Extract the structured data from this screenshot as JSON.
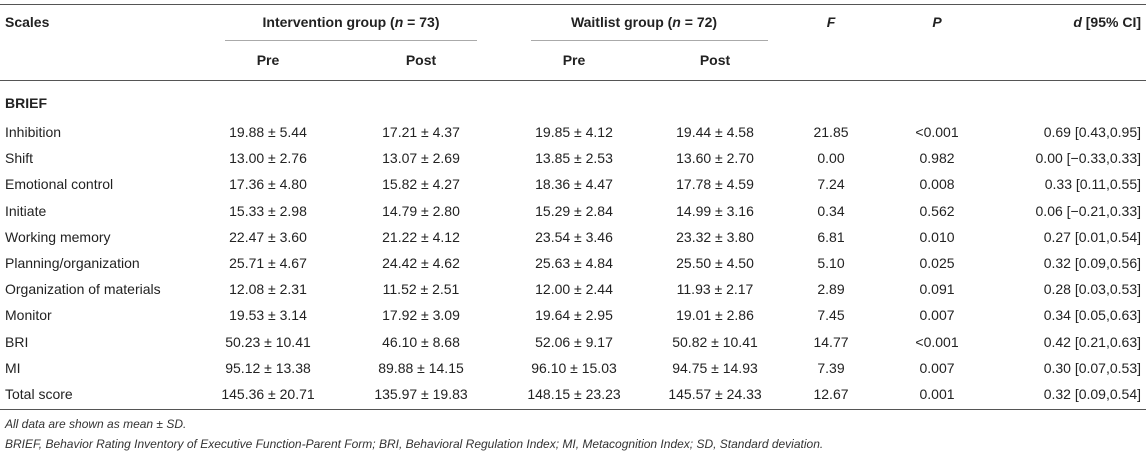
{
  "header": {
    "scales": "Scales",
    "intervention": "Intervention group (",
    "intervention_n": "n",
    "intervention_val": " = 73)",
    "waitlist": "Waitlist group (",
    "waitlist_n": "n",
    "waitlist_val": " = 72)",
    "f": "F",
    "p": "P",
    "d": "d",
    "d_rest": " [95% CI]",
    "pre": "Pre",
    "post": "Post"
  },
  "section": "BRIEF",
  "rows": [
    {
      "scale": "Inhibition",
      "int_pre": "19.88 ± 5.44",
      "int_post": "17.21 ± 4.37",
      "wl_pre": "19.85 ± 4.12",
      "wl_post": "19.44 ± 4.58",
      "f": "21.85",
      "p": "<0.001",
      "d": "0.69 [0.43,0.95]"
    },
    {
      "scale": "Shift",
      "int_pre": "13.00 ± 2.76",
      "int_post": "13.07 ± 2.69",
      "wl_pre": "13.85 ± 2.53",
      "wl_post": "13.60 ± 2.70",
      "f": "0.00",
      "p": "0.982",
      "d": "0.00 [−0.33,0.33]"
    },
    {
      "scale": "Emotional control",
      "int_pre": "17.36 ± 4.80",
      "int_post": "15.82 ± 4.27",
      "wl_pre": "18.36 ± 4.47",
      "wl_post": "17.78 ± 4.59",
      "f": "7.24",
      "p": "0.008",
      "d": "0.33 [0.11,0.55]"
    },
    {
      "scale": "Initiate",
      "int_pre": "15.33 ± 2.98",
      "int_post": "14.79 ± 2.80",
      "wl_pre": "15.29 ± 2.84",
      "wl_post": "14.99 ± 3.16",
      "f": "0.34",
      "p": "0.562",
      "d": "0.06 [−0.21,0.33]"
    },
    {
      "scale": "Working memory",
      "int_pre": "22.47 ± 3.60",
      "int_post": "21.22 ± 4.12",
      "wl_pre": "23.54 ± 3.46",
      "wl_post": "23.32 ± 3.80",
      "f": "6.81",
      "p": "0.010",
      "d": "0.27 [0.01,0.54]"
    },
    {
      "scale": "Planning/organization",
      "int_pre": "25.71 ± 4.67",
      "int_post": "24.42 ± 4.62",
      "wl_pre": "25.63 ± 4.84",
      "wl_post": "25.50 ± 4.50",
      "f": "5.10",
      "p": "0.025",
      "d": "0.32 [0.09,0.56]"
    },
    {
      "scale": "Organization of materials",
      "int_pre": "12.08 ± 2.31",
      "int_post": "11.52 ± 2.51",
      "wl_pre": "12.00 ± 2.44",
      "wl_post": "11.93 ± 2.17",
      "f": "2.89",
      "p": "0.091",
      "d": "0.28 [0.03,0.53]"
    },
    {
      "scale": "Monitor",
      "int_pre": "19.53 ± 3.14",
      "int_post": "17.92 ± 3.09",
      "wl_pre": "19.64 ± 2.95",
      "wl_post": "19.01 ± 2.86",
      "f": "7.45",
      "p": "0.007",
      "d": "0.34 [0.05,0.63]"
    },
    {
      "scale": "BRI",
      "int_pre": "50.23 ± 10.41",
      "int_post": "46.10 ± 8.68",
      "wl_pre": "52.06 ± 9.17",
      "wl_post": "50.82 ± 10.41",
      "f": "14.77",
      "p": "<0.001",
      "d": "0.42 [0.21,0.63]"
    },
    {
      "scale": "MI",
      "int_pre": "95.12 ± 13.38",
      "int_post": "89.88 ± 14.15",
      "wl_pre": "96.10 ± 15.03",
      "wl_post": "94.75 ± 14.93",
      "f": "7.39",
      "p": "0.007",
      "d": "0.30 [0.07,0.53]"
    },
    {
      "scale": "Total score",
      "int_pre": "145.36 ± 20.71",
      "int_post": "135.97 ± 19.83",
      "wl_pre": "148.15 ± 23.23",
      "wl_post": "145.57 ± 24.33",
      "f": "12.67",
      "p": "0.001",
      "d": "0.32 [0.09,0.54]"
    }
  ],
  "notes": [
    "All data are shown as mean ± SD.",
    "BRIEF, Behavior Rating Inventory of Executive Function-Parent Form; BRI, Behavioral Regulation Index; MI, Metacognition Index; SD, Standard deviation."
  ]
}
